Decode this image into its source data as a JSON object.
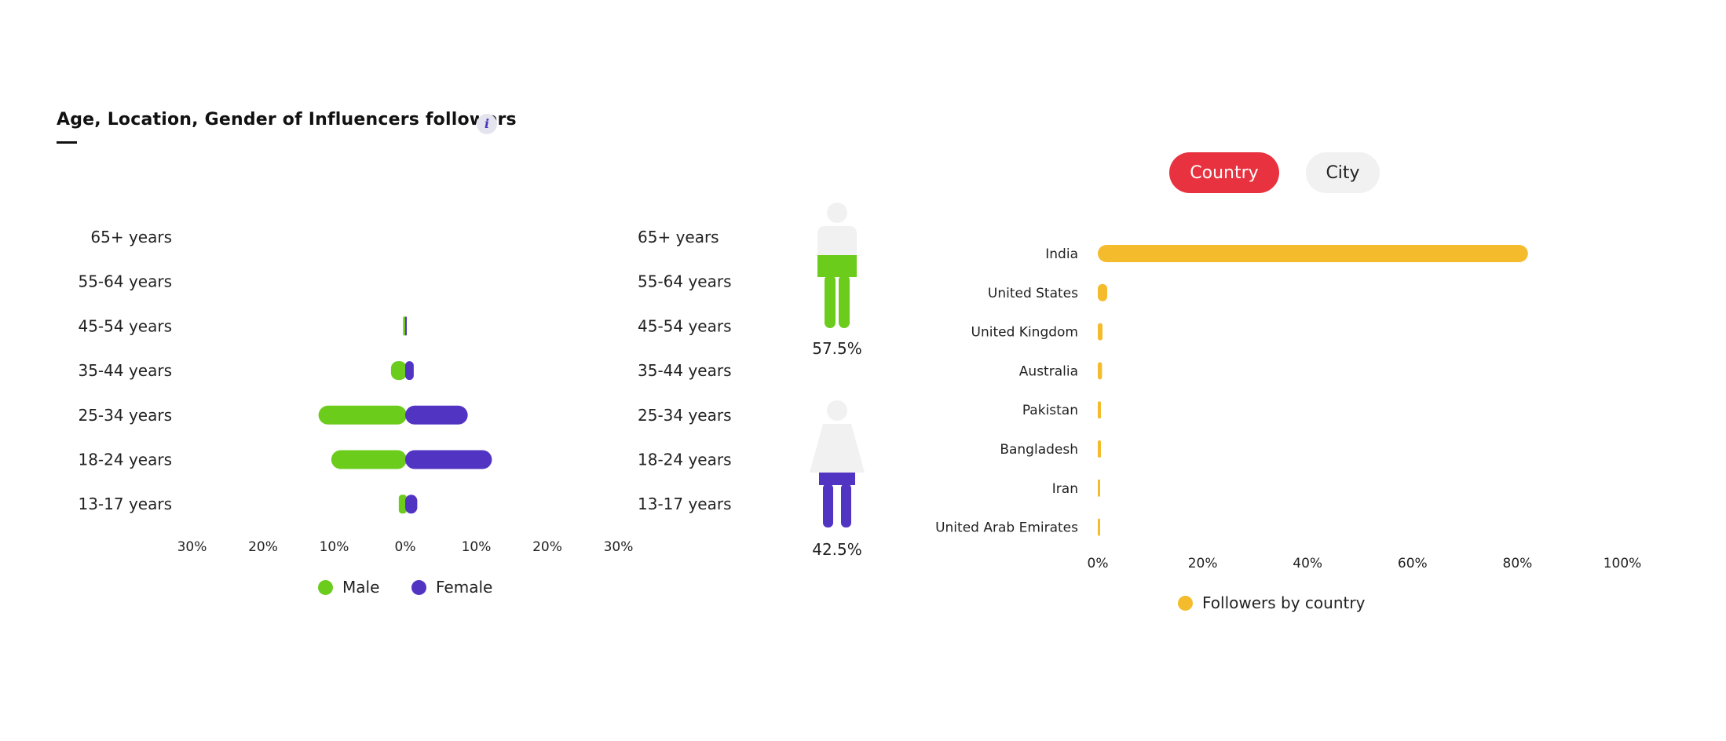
{
  "header": {
    "title": "Age, Location, Gender of Influencers followers",
    "info_icon": "i"
  },
  "tabs": [
    {
      "label": "Country",
      "active": true
    },
    {
      "label": "City",
      "active": false
    }
  ],
  "colors": {
    "male": "#6ccc1c",
    "female": "#5234c2",
    "country_bar": "#f4bc2c",
    "active_tab": "#e8323f"
  },
  "gender": {
    "male": {
      "label": "Male",
      "percent_text": "57.5%",
      "value": 57.5
    },
    "female": {
      "label": "Female",
      "percent_text": "42.5%",
      "value": 42.5
    }
  },
  "chart_data": [
    {
      "type": "bar",
      "orientation": "horizontal",
      "subtype": "population-pyramid",
      "categories": [
        "65+ years",
        "55-64 years",
        "45-54 years",
        "35-44 years",
        "25-34 years",
        "18-24 years",
        "13-17 years"
      ],
      "series": [
        {
          "name": "Male",
          "values": [
            0,
            0,
            0.3,
            2,
            12.2,
            10.4,
            0.9
          ]
        },
        {
          "name": "Female",
          "values": [
            0,
            0,
            0.2,
            1.2,
            8.8,
            12.2,
            1.7
          ]
        }
      ],
      "x_tick_labels": [
        "30%",
        "20%",
        "10%",
        "0%",
        "10%",
        "20%",
        "30%"
      ],
      "xlim": [
        -30,
        30
      ],
      "legend": [
        "Male",
        "Female"
      ],
      "legend_position": "bottom",
      "grid": false
    },
    {
      "type": "bar",
      "orientation": "horizontal",
      "categories": [
        "India",
        "United States",
        "United Kingdom",
        "Australia",
        "Pakistan",
        "Bangladesh",
        "Iran",
        "United Arab Emirates"
      ],
      "series": [
        {
          "name": "Followers by country",
          "values": [
            82,
            1.8,
            0.9,
            0.8,
            0.6,
            0.6,
            0.4,
            0.4
          ]
        }
      ],
      "x_tick_labels": [
        "0%",
        "20%",
        "40%",
        "60%",
        "80%",
        "100%"
      ],
      "xlim": [
        0,
        100
      ],
      "legend": [
        "Followers by country"
      ],
      "legend_position": "bottom",
      "grid": false
    }
  ]
}
